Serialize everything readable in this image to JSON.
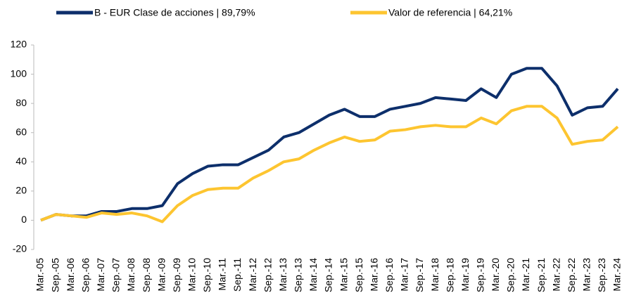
{
  "chart_data": {
    "type": "line",
    "categories": [
      "Mar.-05",
      "Sep.-05",
      "Mar.-06",
      "Sep.-06",
      "Mar.-07",
      "Sep.-07",
      "Mar.-08",
      "Sep.-08",
      "Mar.-09",
      "Sep.-09",
      "Mar.-10",
      "Sep.-10",
      "Mar.-11",
      "Sep.-11",
      "Mar.-12",
      "Sep.-12",
      "Mar.-13",
      "Sep.-13",
      "Mar.-14",
      "Sep.-14",
      "Mar.-15",
      "Sep.-15",
      "Mar.-16",
      "Sep.-16",
      "Mar.-17",
      "Sep.-17",
      "Mar.-18",
      "Sep.-18",
      "Mar.-19",
      "Sep.-19",
      "Mar.-20",
      "Sep.-20",
      "Mar.-21",
      "Sep.-21",
      "Mar.-22",
      "Sep.-22",
      "Mar.-23",
      "Sep.-23",
      "Mar.-24"
    ],
    "series": [
      {
        "name": "B - EUR Clase de acciones | 89,79%",
        "color": "#0d2f6b",
        "values": [
          0,
          4,
          3,
          3,
          6,
          6,
          8,
          8,
          10,
          25,
          32,
          37,
          38,
          38,
          43,
          48,
          57,
          60,
          66,
          72,
          76,
          71,
          71,
          76,
          78,
          80,
          84,
          83,
          82,
          90,
          84,
          100,
          104,
          104,
          92,
          72,
          77,
          78,
          90
        ]
      },
      {
        "name": "Valor de referencia | 64,21%",
        "color": "#fdc530",
        "values": [
          0,
          4,
          3,
          2,
          5,
          4,
          5,
          3,
          -1,
          10,
          17,
          21,
          22,
          22,
          29,
          34,
          40,
          42,
          48,
          53,
          57,
          54,
          55,
          61,
          62,
          64,
          65,
          64,
          64,
          70,
          66,
          75,
          78,
          78,
          70,
          52,
          54,
          55,
          64
        ]
      }
    ],
    "ylim": [
      -20,
      120
    ],
    "yticks": [
      -20,
      0,
      20,
      40,
      60,
      80,
      100,
      120
    ],
    "grid": false
  }
}
